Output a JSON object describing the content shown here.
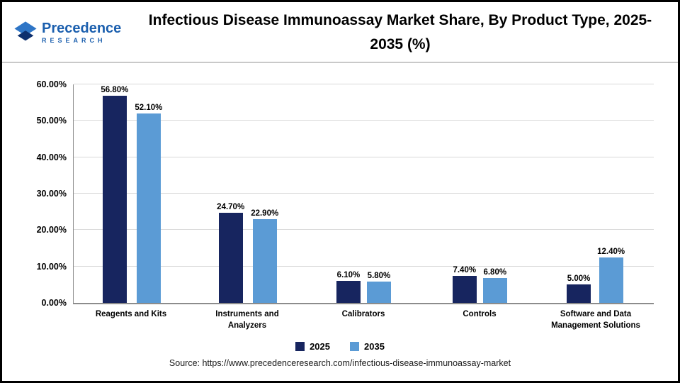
{
  "header": {
    "logo": {
      "name": "Precedence",
      "sub": "RESEARCH"
    }
  },
  "chart_data": {
    "type": "bar",
    "title": "Infectious Disease Immunoassay Market Share, By Product Type, 2025-2035 (%)",
    "categories": [
      "Reagents and Kits",
      "Instruments and Analyzers",
      "Calibrators",
      "Controls",
      "Software and Data Management Solutions"
    ],
    "series": [
      {
        "name": "2025",
        "color": "#17255f",
        "values": [
          56.8,
          24.7,
          6.1,
          7.4,
          5.0
        ],
        "value_labels": [
          "56.80%",
          "24.70%",
          "6.10%",
          "7.40%",
          "5.00%"
        ]
      },
      {
        "name": "2035",
        "color": "#5b9bd5",
        "values": [
          52.1,
          22.9,
          5.8,
          6.8,
          12.4
        ],
        "value_labels": [
          "52.10%",
          "22.90%",
          "5.80%",
          "6.80%",
          "12.40%"
        ]
      }
    ],
    "xlabel": "",
    "ylabel": "",
    "ylim": [
      0,
      60
    ],
    "yticks": [
      0,
      10,
      20,
      30,
      40,
      50,
      60
    ],
    "ytick_labels": [
      "0.00%",
      "10.00%",
      "20.00%",
      "30.00%",
      "40.00%",
      "50.00%",
      "60.00%"
    ],
    "grid": true,
    "legend_position": "bottom"
  },
  "footer": {
    "source": "Source: https://www.precedenceresearch.com/infectious-disease-immunoassay-market"
  }
}
